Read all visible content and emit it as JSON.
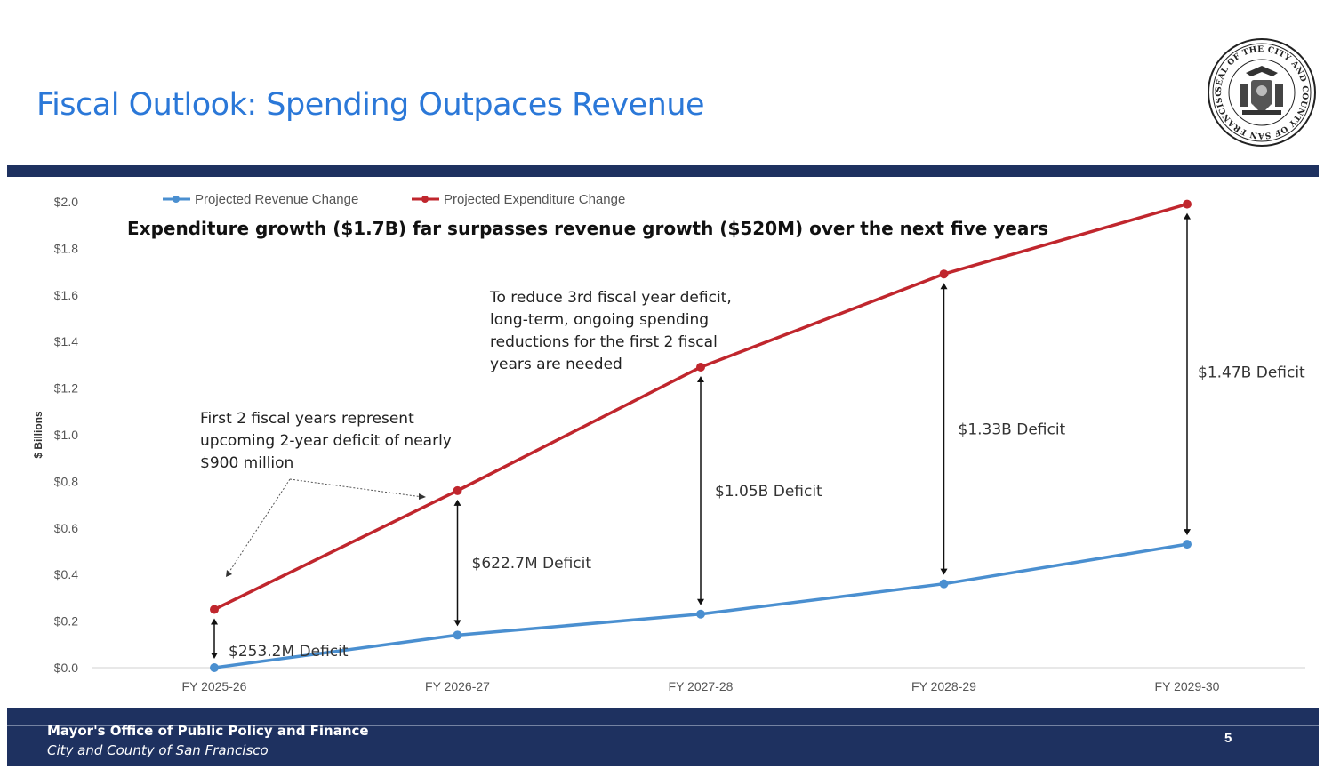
{
  "slide": {
    "title": "Fiscal Outlook: Spending Outpaces Revenue",
    "seal_text": "SEAL OF THE CITY AND COUNTY OF SAN FRANCISCO"
  },
  "footer": {
    "org": "Mayor's Office of Public Policy and Finance",
    "sub": "City and County of San Francisco",
    "page": "5"
  },
  "colors": {
    "title": "#2b78d8",
    "band": "#1e3160",
    "revenue": "#4a8fd0",
    "expenditure": "#c0262d"
  },
  "chart_data": {
    "type": "line",
    "title": "Expenditure growth ($1.7B) far surpasses revenue growth ($520M) over the next five years",
    "ylabel": "$ Billions",
    "xlabel": "",
    "x": [
      "FY 2025-26",
      "FY 2026-27",
      "FY 2027-28",
      "FY 2028-29",
      "FY 2029-30"
    ],
    "ylim": [
      0,
      2.0
    ],
    "yticks": [
      "$0.0",
      "$0.2",
      "$0.4",
      "$0.6",
      "$0.8",
      "$1.0",
      "$1.2",
      "$1.4",
      "$1.6",
      "$1.8",
      "$2.0"
    ],
    "legend_position": "top-left",
    "series": [
      {
        "name": "Projected Revenue Change",
        "values": [
          0.0,
          0.14,
          0.23,
          0.36,
          0.53
        ],
        "color": "#4a8fd0"
      },
      {
        "name": "Projected Expenditure Change",
        "values": [
          0.25,
          0.76,
          1.29,
          1.69,
          1.99
        ],
        "color": "#c0262d"
      }
    ],
    "deficits": [
      "$253.2M Deficit",
      "$622.7M Deficit",
      "$1.05B Deficit",
      "$1.33B Deficit",
      "$1.47B Deficit"
    ],
    "annotations": {
      "first_two_years": [
        "First 2 fiscal years represent",
        "upcoming 2-year deficit of nearly",
        "$900 million"
      ],
      "third_year": [
        "To reduce 3rd fiscal year deficit,",
        "long-term, ongoing spending",
        "reductions for the first 2 fiscal",
        "years are needed"
      ]
    }
  }
}
